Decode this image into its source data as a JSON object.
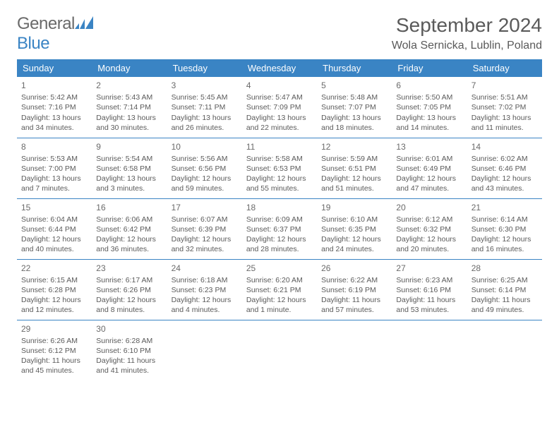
{
  "logo": {
    "name": "General",
    "nameAccent": "Blue"
  },
  "title": "September 2024",
  "location": "Wola Sernicka, Lublin, Poland",
  "colors": {
    "header_bg": "#3a84c4",
    "header_fg": "#ffffff",
    "text": "#5a5a5a",
    "rule": "#3a84c4"
  },
  "daysOfWeek": [
    "Sunday",
    "Monday",
    "Tuesday",
    "Wednesday",
    "Thursday",
    "Friday",
    "Saturday"
  ],
  "weeks": [
    [
      {
        "n": "1",
        "sr": "Sunrise: 5:42 AM",
        "ss": "Sunset: 7:16 PM",
        "dl": "Daylight: 13 hours and 34 minutes."
      },
      {
        "n": "2",
        "sr": "Sunrise: 5:43 AM",
        "ss": "Sunset: 7:14 PM",
        "dl": "Daylight: 13 hours and 30 minutes."
      },
      {
        "n": "3",
        "sr": "Sunrise: 5:45 AM",
        "ss": "Sunset: 7:11 PM",
        "dl": "Daylight: 13 hours and 26 minutes."
      },
      {
        "n": "4",
        "sr": "Sunrise: 5:47 AM",
        "ss": "Sunset: 7:09 PM",
        "dl": "Daylight: 13 hours and 22 minutes."
      },
      {
        "n": "5",
        "sr": "Sunrise: 5:48 AM",
        "ss": "Sunset: 7:07 PM",
        "dl": "Daylight: 13 hours and 18 minutes."
      },
      {
        "n": "6",
        "sr": "Sunrise: 5:50 AM",
        "ss": "Sunset: 7:05 PM",
        "dl": "Daylight: 13 hours and 14 minutes."
      },
      {
        "n": "7",
        "sr": "Sunrise: 5:51 AM",
        "ss": "Sunset: 7:02 PM",
        "dl": "Daylight: 13 hours and 11 minutes."
      }
    ],
    [
      {
        "n": "8",
        "sr": "Sunrise: 5:53 AM",
        "ss": "Sunset: 7:00 PM",
        "dl": "Daylight: 13 hours and 7 minutes."
      },
      {
        "n": "9",
        "sr": "Sunrise: 5:54 AM",
        "ss": "Sunset: 6:58 PM",
        "dl": "Daylight: 13 hours and 3 minutes."
      },
      {
        "n": "10",
        "sr": "Sunrise: 5:56 AM",
        "ss": "Sunset: 6:56 PM",
        "dl": "Daylight: 12 hours and 59 minutes."
      },
      {
        "n": "11",
        "sr": "Sunrise: 5:58 AM",
        "ss": "Sunset: 6:53 PM",
        "dl": "Daylight: 12 hours and 55 minutes."
      },
      {
        "n": "12",
        "sr": "Sunrise: 5:59 AM",
        "ss": "Sunset: 6:51 PM",
        "dl": "Daylight: 12 hours and 51 minutes."
      },
      {
        "n": "13",
        "sr": "Sunrise: 6:01 AM",
        "ss": "Sunset: 6:49 PM",
        "dl": "Daylight: 12 hours and 47 minutes."
      },
      {
        "n": "14",
        "sr": "Sunrise: 6:02 AM",
        "ss": "Sunset: 6:46 PM",
        "dl": "Daylight: 12 hours and 43 minutes."
      }
    ],
    [
      {
        "n": "15",
        "sr": "Sunrise: 6:04 AM",
        "ss": "Sunset: 6:44 PM",
        "dl": "Daylight: 12 hours and 40 minutes."
      },
      {
        "n": "16",
        "sr": "Sunrise: 6:06 AM",
        "ss": "Sunset: 6:42 PM",
        "dl": "Daylight: 12 hours and 36 minutes."
      },
      {
        "n": "17",
        "sr": "Sunrise: 6:07 AM",
        "ss": "Sunset: 6:39 PM",
        "dl": "Daylight: 12 hours and 32 minutes."
      },
      {
        "n": "18",
        "sr": "Sunrise: 6:09 AM",
        "ss": "Sunset: 6:37 PM",
        "dl": "Daylight: 12 hours and 28 minutes."
      },
      {
        "n": "19",
        "sr": "Sunrise: 6:10 AM",
        "ss": "Sunset: 6:35 PM",
        "dl": "Daylight: 12 hours and 24 minutes."
      },
      {
        "n": "20",
        "sr": "Sunrise: 6:12 AM",
        "ss": "Sunset: 6:32 PM",
        "dl": "Daylight: 12 hours and 20 minutes."
      },
      {
        "n": "21",
        "sr": "Sunrise: 6:14 AM",
        "ss": "Sunset: 6:30 PM",
        "dl": "Daylight: 12 hours and 16 minutes."
      }
    ],
    [
      {
        "n": "22",
        "sr": "Sunrise: 6:15 AM",
        "ss": "Sunset: 6:28 PM",
        "dl": "Daylight: 12 hours and 12 minutes."
      },
      {
        "n": "23",
        "sr": "Sunrise: 6:17 AM",
        "ss": "Sunset: 6:26 PM",
        "dl": "Daylight: 12 hours and 8 minutes."
      },
      {
        "n": "24",
        "sr": "Sunrise: 6:18 AM",
        "ss": "Sunset: 6:23 PM",
        "dl": "Daylight: 12 hours and 4 minutes."
      },
      {
        "n": "25",
        "sr": "Sunrise: 6:20 AM",
        "ss": "Sunset: 6:21 PM",
        "dl": "Daylight: 12 hours and 1 minute."
      },
      {
        "n": "26",
        "sr": "Sunrise: 6:22 AM",
        "ss": "Sunset: 6:19 PM",
        "dl": "Daylight: 11 hours and 57 minutes."
      },
      {
        "n": "27",
        "sr": "Sunrise: 6:23 AM",
        "ss": "Sunset: 6:16 PM",
        "dl": "Daylight: 11 hours and 53 minutes."
      },
      {
        "n": "28",
        "sr": "Sunrise: 6:25 AM",
        "ss": "Sunset: 6:14 PM",
        "dl": "Daylight: 11 hours and 49 minutes."
      }
    ],
    [
      {
        "n": "29",
        "sr": "Sunrise: 6:26 AM",
        "ss": "Sunset: 6:12 PM",
        "dl": "Daylight: 11 hours and 45 minutes."
      },
      {
        "n": "30",
        "sr": "Sunrise: 6:28 AM",
        "ss": "Sunset: 6:10 PM",
        "dl": "Daylight: 11 hours and 41 minutes."
      },
      null,
      null,
      null,
      null,
      null
    ]
  ]
}
